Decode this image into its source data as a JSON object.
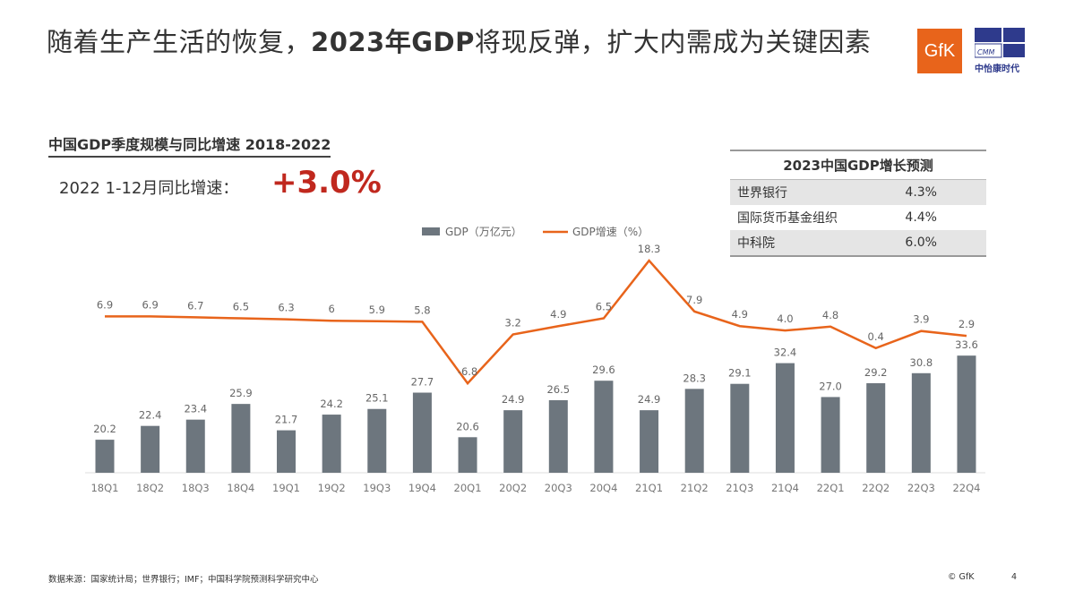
{
  "header": {
    "title_pre": "随着生产生活的恢复，",
    "title_bold": "2023年GDP",
    "title_post": "将现反弹，扩大内需成为关键因素",
    "logo_gfk": "GfK",
    "logo_cmm": "CMM",
    "logo_cmm_cn": "中怡康时代"
  },
  "chart_title": "中国GDP季度规模与同比增速 2018-2022",
  "ytd": {
    "label": "2022 1-12月同比增速：",
    "value": "+3.0%"
  },
  "forecast": {
    "title": "2023中国GDP增长预测",
    "rows": [
      {
        "org": "世界银行",
        "value": "4.3%"
      },
      {
        "org": "国际货币基金组织",
        "value": "4.4%"
      },
      {
        "org": "中科院",
        "value": "6.0%"
      }
    ]
  },
  "colors": {
    "bar": "#6d767e",
    "line": "#e8641b",
    "accent": "#c0281e"
  },
  "chart_data": {
    "type": "bar+line",
    "categories": [
      "18Q1",
      "18Q2",
      "18Q3",
      "18Q4",
      "19Q1",
      "19Q2",
      "19Q3",
      "19Q4",
      "20Q1",
      "20Q2",
      "20Q3",
      "20Q4",
      "21Q1",
      "21Q2",
      "21Q3",
      "21Q4",
      "22Q1",
      "22Q2",
      "22Q3",
      "22Q4"
    ],
    "series": [
      {
        "name": "GDP（万亿元）",
        "type": "bar",
        "values": [
          20.2,
          22.4,
          23.4,
          25.9,
          21.7,
          24.2,
          25.1,
          27.7,
          20.6,
          24.9,
          26.5,
          29.6,
          24.9,
          28.3,
          29.1,
          32.4,
          27.0,
          29.2,
          30.8,
          33.6
        ],
        "labels": [
          "20.2",
          "22.4",
          "23.4",
          "25.9",
          "21.7",
          "24.2",
          "25.1",
          "27.7",
          "20.6",
          "24.9",
          "26.5",
          "29.6",
          "24.9",
          "28.3",
          "29.1",
          "32.4",
          "27.0",
          "29.2",
          "30.8",
          "33.6"
        ]
      },
      {
        "name": "GDP增速（%）",
        "type": "line",
        "values": [
          6.9,
          6.9,
          6.7,
          6.5,
          6.3,
          6,
          5.9,
          5.8,
          -6.8,
          3.2,
          4.9,
          6.5,
          18.3,
          7.9,
          4.9,
          4.0,
          4.8,
          0.4,
          3.9,
          2.9
        ],
        "labels": [
          "6.9",
          "6.9",
          "6.7",
          "6.5",
          "6.3",
          "6",
          "5.9",
          "5.8",
          "-6.8",
          "3.2",
          "4.9",
          "6.5",
          "18.3",
          "7.9",
          "4.9",
          "4.0",
          "4.8",
          "0.4",
          "3.9",
          "2.9"
        ]
      }
    ],
    "legend": "top-center",
    "grid": false
  },
  "footer": {
    "source": "数据来源：国家统计局；世界银行；IMF；中国科学院预测科学研究中心",
    "copyright": "© GfK",
    "page": "4"
  }
}
